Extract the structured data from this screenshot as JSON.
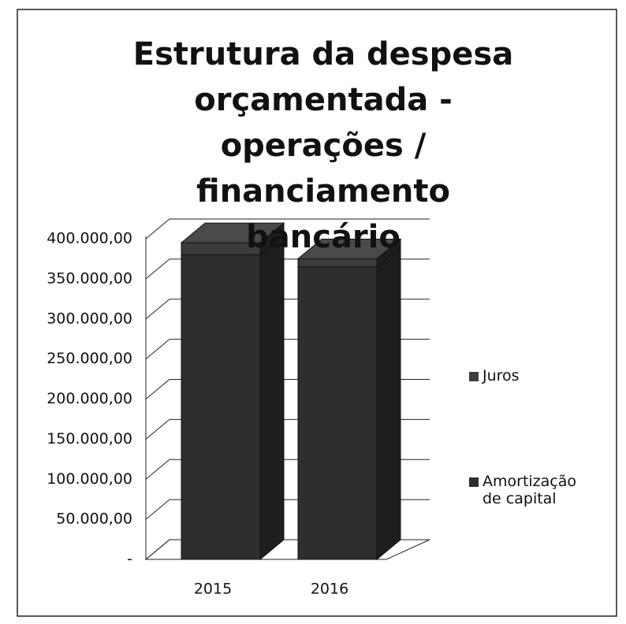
{
  "chart_data": {
    "type": "bar3d_stacked",
    "title": "Estrutura da despesa orçamentada  - operações / financiamento bancário",
    "categories": [
      "2015",
      "2016"
    ],
    "series": [
      {
        "name": "Amortização de capital",
        "color": "#2e2e2e",
        "values": [
          380000,
          365000
        ]
      },
      {
        "name": "Juros",
        "color": "#3c3c3c",
        "values": [
          15000,
          10000
        ]
      }
    ],
    "ylim": [
      0,
      400000
    ],
    "yticks": [
      {
        "value": 0,
        "label": "-"
      },
      {
        "value": 50000,
        "label": "50.000,00"
      },
      {
        "value": 100000,
        "label": "100.000,00"
      },
      {
        "value": 150000,
        "label": "150.000,00"
      },
      {
        "value": 200000,
        "label": "200.000,00"
      },
      {
        "value": 250000,
        "label": "250.000,00"
      },
      {
        "value": 300000,
        "label": "300.000,00"
      },
      {
        "value": 350000,
        "label": "350.000,00"
      },
      {
        "value": 400000,
        "label": "400.000,00"
      }
    ],
    "grid": true,
    "legend": "right"
  }
}
